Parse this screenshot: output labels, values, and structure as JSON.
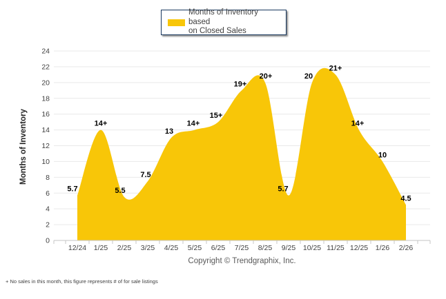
{
  "chart_data": {
    "type": "area",
    "legend_label": "Months of Inventory based\non Closed Sales",
    "ylabel": "Months of Inventory",
    "ylim": [
      0,
      24
    ],
    "ytick_step": 2,
    "grid": "horizontal",
    "legend_position": "top-center",
    "categories": [
      "12/24",
      "1/25",
      "2/25",
      "3/25",
      "4/25",
      "5/25",
      "6/25",
      "7/25",
      "8/25",
      "9/25",
      "10/25",
      "11/25",
      "12/25",
      "1/26",
      "2/26"
    ],
    "series": [
      {
        "name": "Months of Inventory based on Closed Sales",
        "values": [
          5.7,
          14,
          5.5,
          7.5,
          13,
          14,
          15,
          19,
          20,
          5.7,
          20,
          21,
          14,
          10,
          4.5
        ],
        "point_labels": [
          "5.7",
          "14+",
          "5.5",
          "7.5",
          "13",
          "14+",
          "15+",
          "19+",
          "20+",
          "5.7",
          "20",
          "21+",
          "14+",
          "10",
          "4.5"
        ],
        "color": "#F8C608"
      }
    ]
  },
  "footer": {
    "copyright": "Copyright © Trendgraphix, Inc.",
    "footnote": "+ No sales in this month, this figure represents # of for sale listings"
  },
  "colors": {
    "area": "#F8C608",
    "legend_border": "#17375E",
    "grid": "#E9E9E9",
    "axis": "#C6C6C6",
    "tick_text": "#404040",
    "data_label": "#000000"
  }
}
